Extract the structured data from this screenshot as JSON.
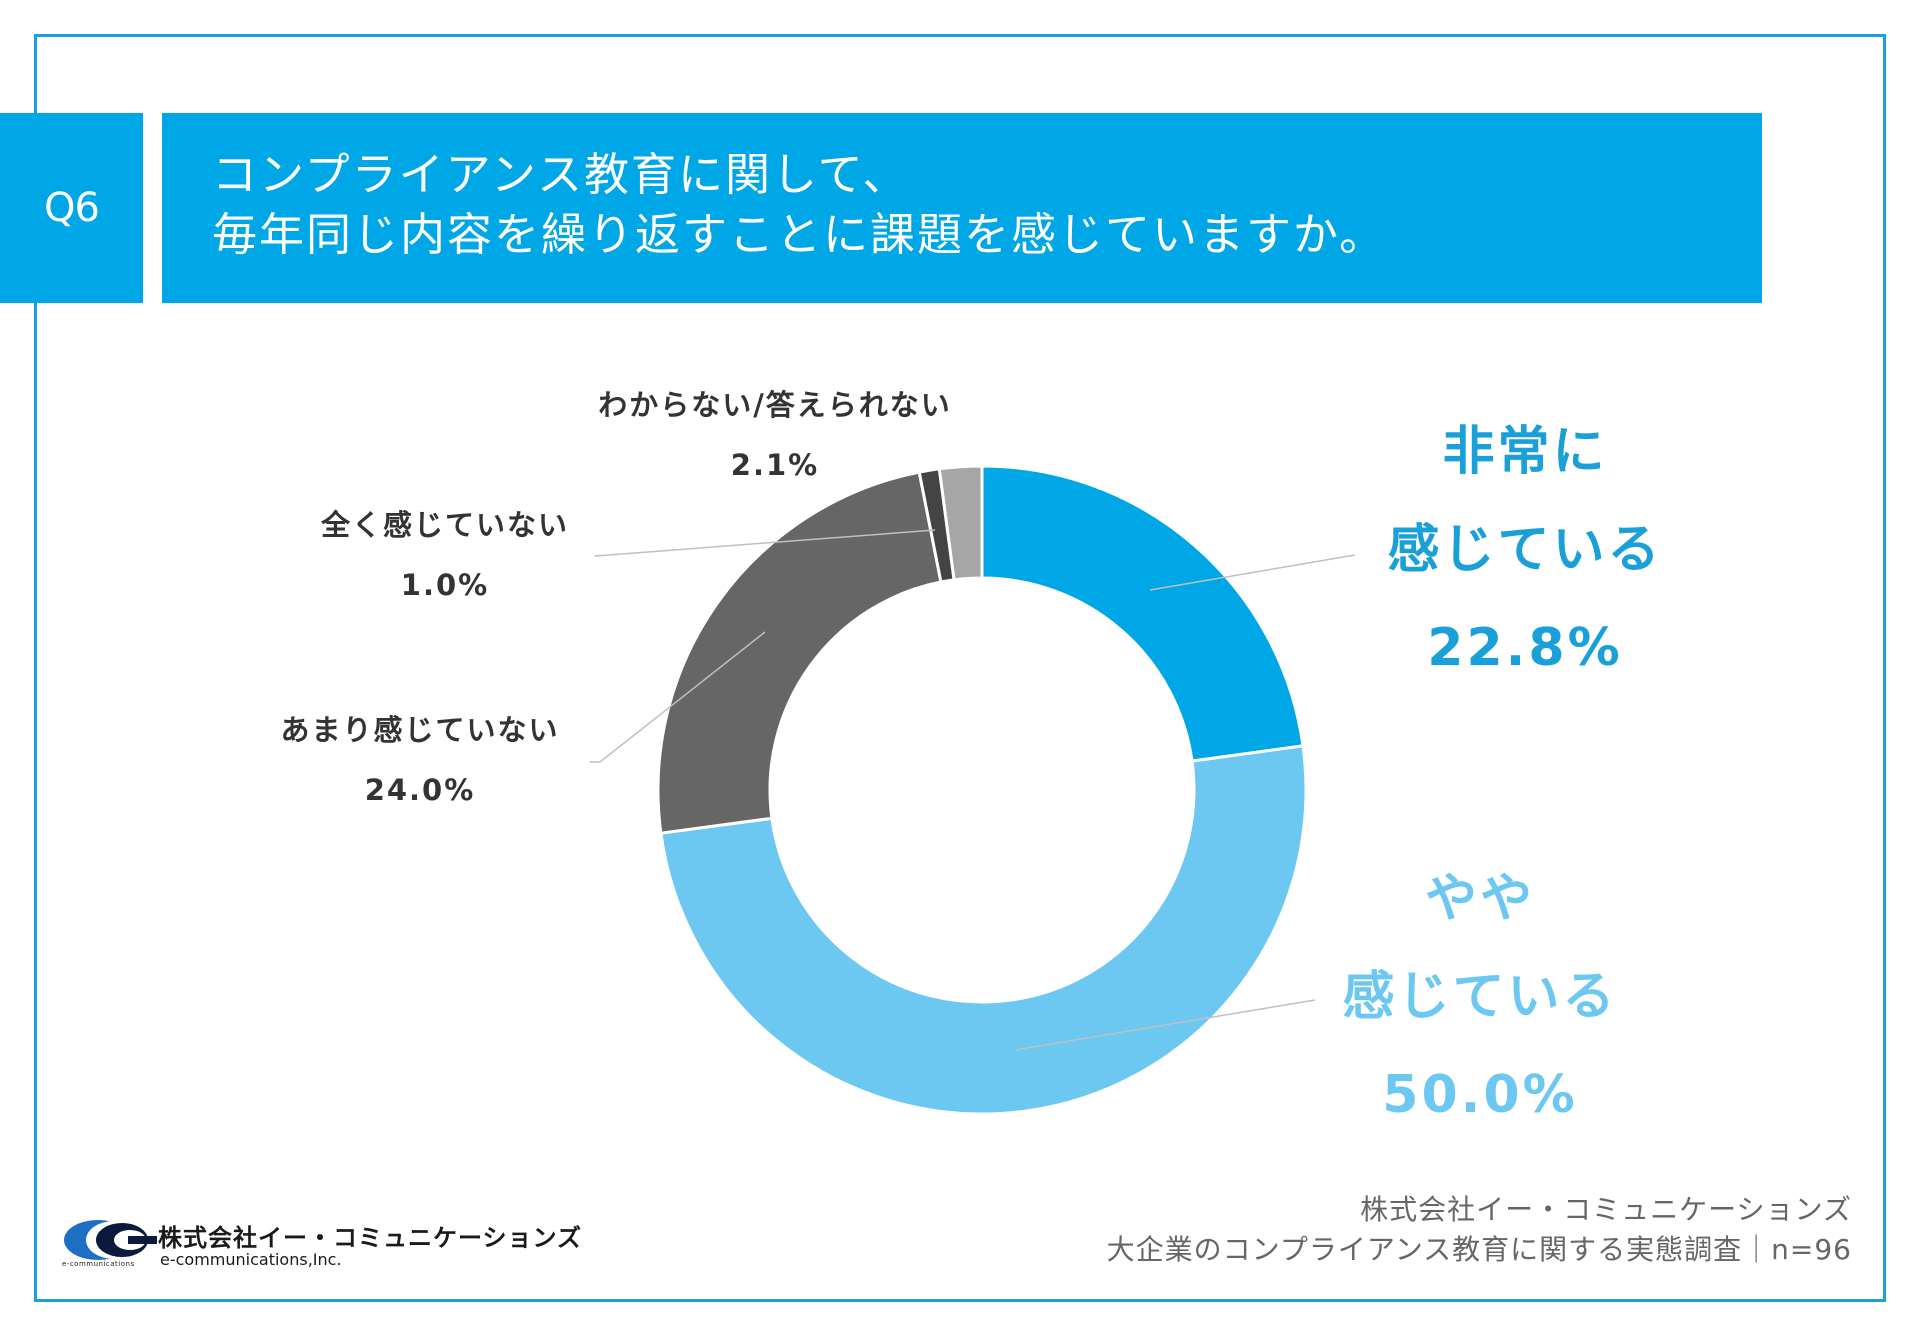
{
  "question": {
    "badge": "Q6",
    "line1": "コンプライアンス教育に関して、",
    "line2": "毎年同じ内容を繰り返すことに課題を感じていますか。"
  },
  "chart_data": {
    "type": "pie",
    "donut": true,
    "start_angle_deg": 0,
    "direction": "clockwise",
    "slices": [
      {
        "label_lines": [
          "非常に",
          "感じている"
        ],
        "value": 22.8,
        "value_label": "22.8%",
        "color": "#00a7e6",
        "label_color": "#1aa0d8"
      },
      {
        "label_lines": [
          "やや",
          "感じている"
        ],
        "value": 50.0,
        "value_label": "50.0%",
        "color": "#6cc8f0",
        "label_color": "#6cc8f0"
      },
      {
        "label_lines": [
          "あまり感じていない"
        ],
        "value": 24.0,
        "value_label": "24.0%",
        "color": "#666666",
        "label_color": "#333333"
      },
      {
        "label_lines": [
          "全く感じていない"
        ],
        "value": 1.0,
        "value_label": "1.0%",
        "color": "#444444",
        "label_color": "#333333"
      },
      {
        "label_lines": [
          "わからない/答えられない"
        ],
        "value": 2.1,
        "value_label": "2.1%",
        "color": "#a6a6a6",
        "label_color": "#333333"
      }
    ],
    "leader_color": "#bfbfbf"
  },
  "logo": {
    "company_jp": "株式会社イー・コミュニケーションズ",
    "company_en": "e-communications,Inc.",
    "tiny_text": "e-communications"
  },
  "footer": {
    "line1": "株式会社イー・コミュニケーションズ",
    "line2": "大企業のコンプライアンス教育に関する実態調査｜n=96"
  }
}
